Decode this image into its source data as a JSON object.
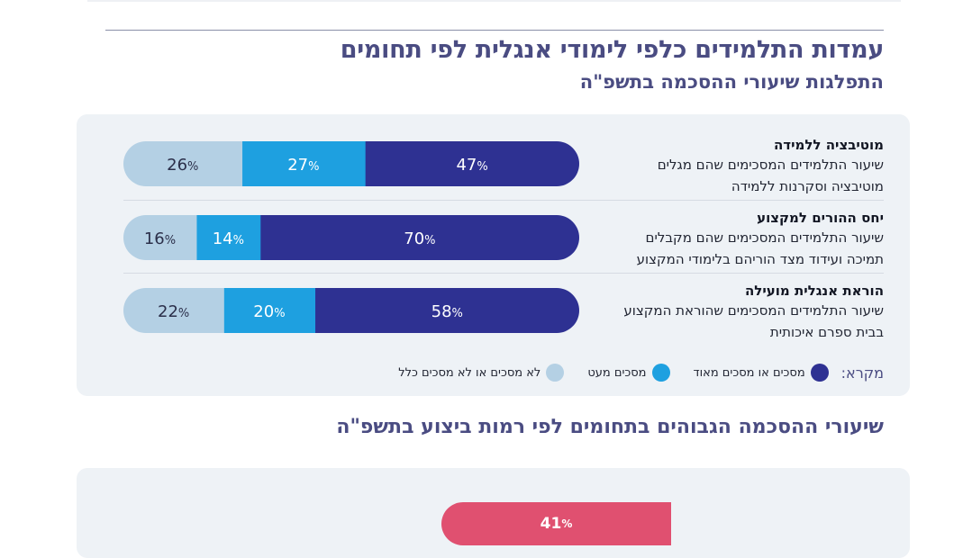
{
  "header": {
    "title": "עמדות התלמידים כלפי לימודי אנגלית לפי תחומים",
    "subtitle": "התפלגות שיעורי ההסכמה בתשפ\"ה"
  },
  "chart_data": [
    {
      "type": "bar",
      "orientation": "horizontal",
      "stacked": true,
      "categories": [
        "מוטיבציה ללמידה",
        "יחס ההורים למקצוע",
        "הוראת אנגלית מועילה"
      ],
      "category_descriptions": [
        [
          "שיעור התלמידים המסכימים שהם מגלים",
          "מוטיבציה וסקרנות ללמידה"
        ],
        [
          "שיעור התלמידים המסכימים שהם מקבלים",
          "תמיכה ועידוד מצד הוריהם בלימודי המקצוע"
        ],
        [
          "שיעור התלמידים המסכימים שהוראת המקצוע",
          "בבית ספרם איכותית"
        ]
      ],
      "unit": "%",
      "series": [
        {
          "name": "מסכים או מסכים מאוד",
          "values": [
            47,
            70,
            58
          ],
          "color": "#2e3192"
        },
        {
          "name": "מסכים מעט",
          "values": [
            27,
            14,
            20
          ],
          "color": "#1ea0e0"
        },
        {
          "name": "לא מסכים או לא מסכים כלל",
          "values": [
            26,
            16,
            22
          ],
          "color": "#b4d0e4"
        }
      ],
      "legend_lead": "מקרא:",
      "legend_position": "bottom"
    },
    {
      "type": "bar",
      "title": "שיעורי ההסכמה הגבוהים בתחומים לפי רמות ביצוע בתשפ\"ה",
      "visible_values": [
        41
      ],
      "unit": "%",
      "color": "#e05070"
    }
  ]
}
